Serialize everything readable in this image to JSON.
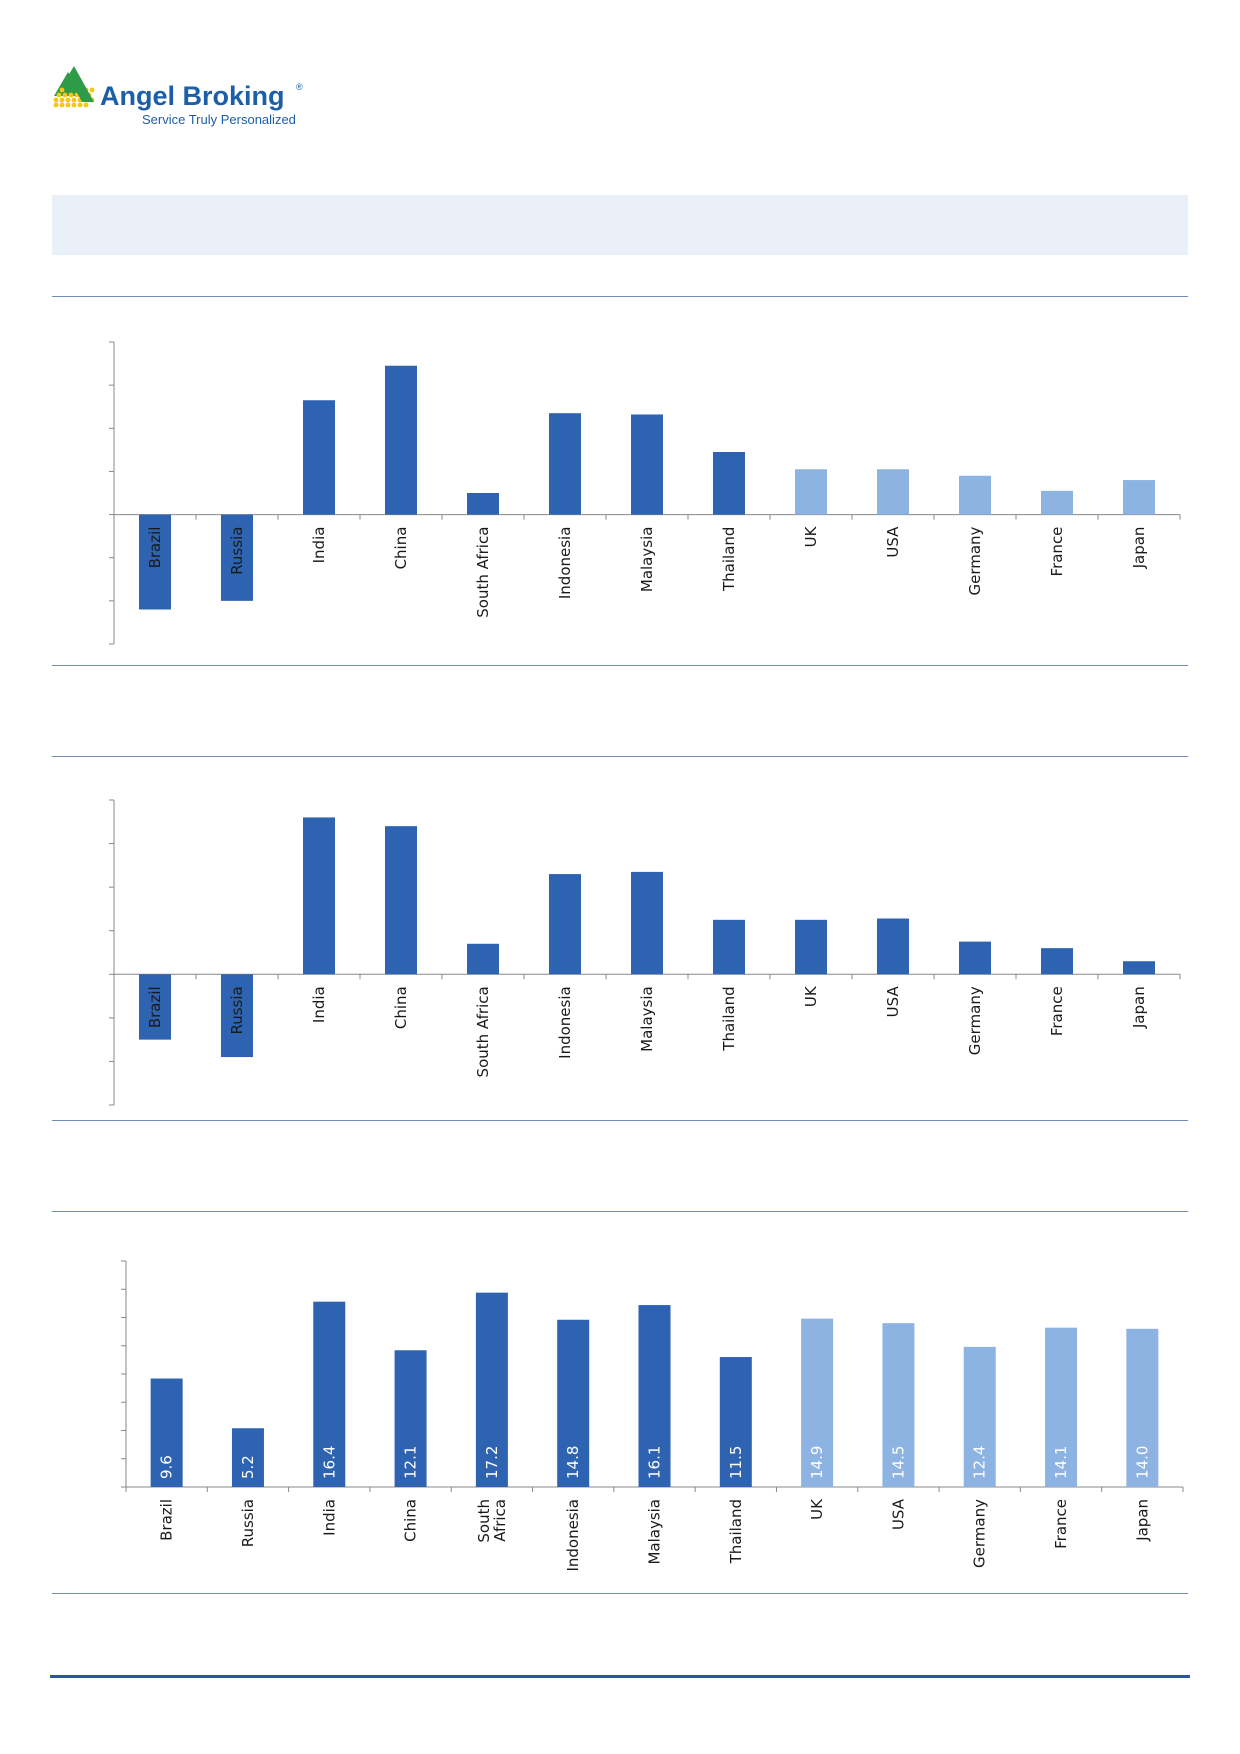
{
  "brand": {
    "name": "Angel Broking",
    "registered": "®",
    "tagline": "Service Truly Personalized",
    "colors": {
      "blue": "#1c5fa8",
      "green": "#2f9a48",
      "yellow": "#f5c518"
    }
  },
  "colors": {
    "dark_bar": "#2e63b1",
    "light_bar": "#8db3e2",
    "axis": "#888888"
  },
  "chart_data": [
    {
      "type": "bar",
      "categories": [
        "Brazil",
        "Russia",
        "India",
        "China",
        "South Africa",
        "Indonesia",
        "Malaysia",
        "Thailand",
        "UK",
        "USA",
        "Germany",
        "France",
        "Japan"
      ],
      "values": [
        -2.2,
        -2.0,
        2.65,
        3.45,
        0.5,
        2.35,
        2.32,
        1.45,
        1.05,
        1.05,
        0.9,
        0.55,
        0.8
      ],
      "highlight": [
        "dark",
        "dark",
        "dark",
        "dark",
        "dark",
        "dark",
        "dark",
        "dark",
        "light",
        "light",
        "light",
        "light",
        "light"
      ],
      "ylim": [
        -3.0,
        4.0
      ],
      "grid": false,
      "label_position": "rotated-category-inside"
    },
    {
      "type": "bar",
      "categories": [
        "Brazil",
        "Russia",
        "India",
        "China",
        "South Africa",
        "Indonesia",
        "Malaysia",
        "Thailand",
        "UK",
        "USA",
        "Germany",
        "France",
        "Japan"
      ],
      "values": [
        -1.5,
        -1.9,
        3.6,
        3.4,
        0.7,
        2.3,
        2.35,
        1.25,
        1.25,
        1.28,
        0.75,
        0.6,
        0.3
      ],
      "highlight": [
        "dark",
        "dark",
        "dark",
        "dark",
        "dark",
        "dark",
        "dark",
        "dark",
        "dark",
        "dark",
        "dark",
        "dark",
        "dark"
      ],
      "ylim": [
        -3.0,
        4.0
      ],
      "grid": false,
      "label_position": "rotated-category-inside"
    },
    {
      "type": "bar",
      "categories": [
        "Brazil",
        "Russia",
        "India",
        "China",
        "South Africa",
        "Indonesia",
        "Malaysia",
        "Thailand",
        "UK",
        "USA",
        "Germany",
        "France",
        "Japan"
      ],
      "category_labels": [
        "Brazil",
        "Russia",
        "India",
        "China",
        "South\nAfrica",
        "Indonesia",
        "Malaysia",
        "Thailand",
        "UK",
        "USA",
        "Germany",
        "France",
        "Japan"
      ],
      "values": [
        9.6,
        5.2,
        16.4,
        12.1,
        17.2,
        14.8,
        16.1,
        11.5,
        14.9,
        14.5,
        12.4,
        14.1,
        14.0
      ],
      "data_labels": [
        "9.6",
        "5.2",
        "16.4",
        "12.1",
        "17.2",
        "14.8",
        "16.1",
        "11.5",
        "14.9",
        "14.5",
        "12.4",
        "14.1",
        "14.0"
      ],
      "highlight": [
        "dark",
        "dark",
        "dark",
        "dark",
        "dark",
        "dark",
        "dark",
        "dark",
        "light",
        "light",
        "light",
        "light",
        "light"
      ],
      "ylim": [
        0,
        20
      ],
      "grid": false,
      "label_position": "rotated-value-inside, category-below"
    }
  ]
}
